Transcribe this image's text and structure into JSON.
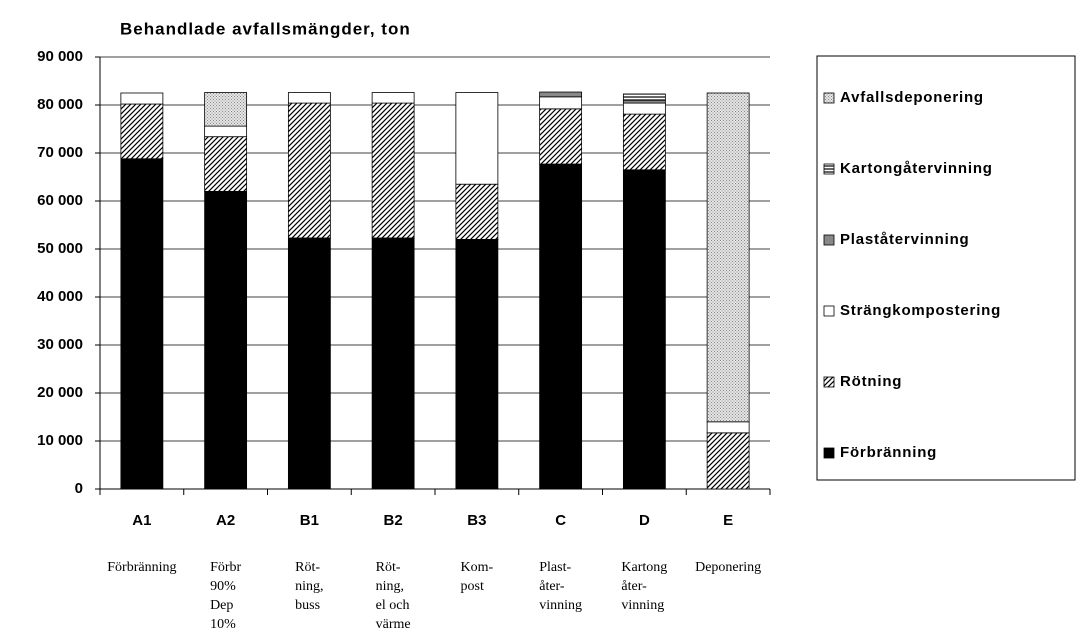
{
  "chart_data": {
    "type": "stacked_bar",
    "title": "Behandlade avfallsmängder, ton",
    "categories": [
      "A1",
      "A2",
      "B1",
      "B2",
      "B3",
      "C",
      "D",
      "E"
    ],
    "descriptions": [
      [
        "Förbränning"
      ],
      [
        "Förbr",
        "90%",
        "Dep",
        "10%"
      ],
      [
        "Röt-",
        "ning,",
        "buss"
      ],
      [
        "Röt-",
        "ning,",
        "el och",
        "värme"
      ],
      [
        "Kom-",
        "post"
      ],
      [
        "Plast-",
        "åter-",
        "vinning"
      ],
      [
        "Kartong",
        "åter-",
        "vinning"
      ],
      [
        "Deponering"
      ]
    ],
    "series": [
      {
        "name": "Förbränning",
        "values": [
          68800,
          62000,
          52300,
          52300,
          52000,
          67700,
          66500,
          0
        ]
      },
      {
        "name": "Rötning",
        "values": [
          11400,
          11400,
          28100,
          28100,
          11500,
          11500,
          11600,
          11700
        ]
      },
      {
        "name": "Strängkompostering",
        "values": [
          2300,
          2200,
          2200,
          2200,
          19100,
          2500,
          2300,
          2300
        ]
      },
      {
        "name": "Plaståtervinning",
        "values": [
          0,
          0,
          0,
          0,
          0,
          1000,
          600,
          0
        ]
      },
      {
        "name": "Kartongåtervinning",
        "values": [
          0,
          0,
          0,
          0,
          0,
          0,
          1300,
          0
        ]
      },
      {
        "name": "Avfallsdeponering",
        "values": [
          0,
          7000,
          0,
          0,
          0,
          0,
          0,
          68500
        ]
      }
    ],
    "ylim": [
      0,
      90000
    ],
    "yticks": [
      {
        "value": 0,
        "label": "0"
      },
      {
        "value": 10000,
        "label": "10 000"
      },
      {
        "value": 20000,
        "label": "20 000"
      },
      {
        "value": 30000,
        "label": "30 000"
      },
      {
        "value": 40000,
        "label": "40 000"
      },
      {
        "value": 50000,
        "label": "50 000"
      },
      {
        "value": 60000,
        "label": "60 000"
      },
      {
        "value": 70000,
        "label": "70 000"
      },
      {
        "value": 80000,
        "label": "80 000"
      },
      {
        "value": 90000,
        "label": "90 000"
      }
    ],
    "grid": true
  }
}
